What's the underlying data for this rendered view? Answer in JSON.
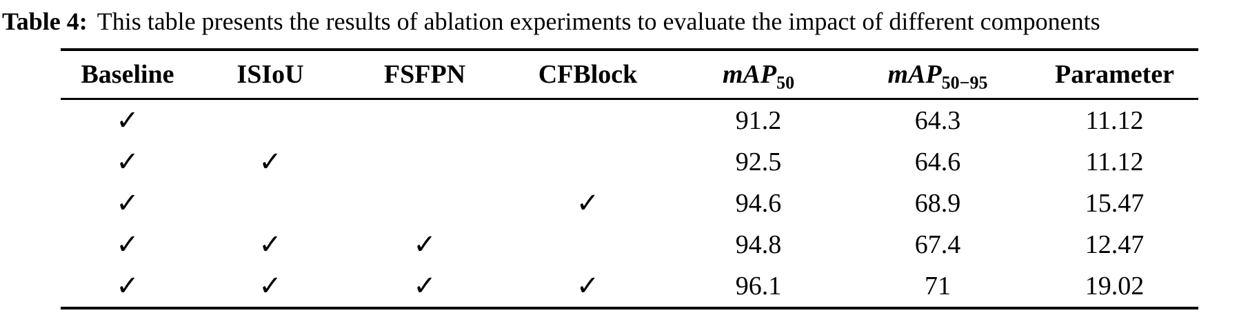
{
  "caption": {
    "label": "Table 4:",
    "text": "This table presents the results of ablation experiments to evaluate the impact of different components"
  },
  "table": {
    "checkmark": "✓",
    "columns": [
      {
        "key": "baseline",
        "kind": "check",
        "label": "Baseline"
      },
      {
        "key": "isiou",
        "kind": "check",
        "label": "ISIoU"
      },
      {
        "key": "fsfpn",
        "kind": "check",
        "label": "FSFPN"
      },
      {
        "key": "cfblock",
        "kind": "check",
        "label": "CFBlock"
      },
      {
        "key": "map50",
        "kind": "value",
        "label_main": "mAP",
        "label_sub": "50"
      },
      {
        "key": "map5095",
        "kind": "value",
        "label_main": "mAP",
        "label_sub": "50−95"
      },
      {
        "key": "parameter",
        "kind": "value",
        "label": "Parameter"
      }
    ],
    "rows": [
      {
        "baseline": true,
        "isiou": false,
        "fsfpn": false,
        "cfblock": false,
        "map50": "91.2",
        "map5095": "64.3",
        "parameter": "11.12"
      },
      {
        "baseline": true,
        "isiou": true,
        "fsfpn": false,
        "cfblock": false,
        "map50": "92.5",
        "map5095": "64.6",
        "parameter": "11.12"
      },
      {
        "baseline": true,
        "isiou": false,
        "fsfpn": false,
        "cfblock": true,
        "map50": "94.6",
        "map5095": "68.9",
        "parameter": "15.47"
      },
      {
        "baseline": true,
        "isiou": true,
        "fsfpn": true,
        "cfblock": false,
        "map50": "94.8",
        "map5095": "67.4",
        "parameter": "12.47"
      },
      {
        "baseline": true,
        "isiou": true,
        "fsfpn": true,
        "cfblock": true,
        "map50": "96.1",
        "map5095": "71",
        "parameter": "19.02"
      }
    ]
  }
}
